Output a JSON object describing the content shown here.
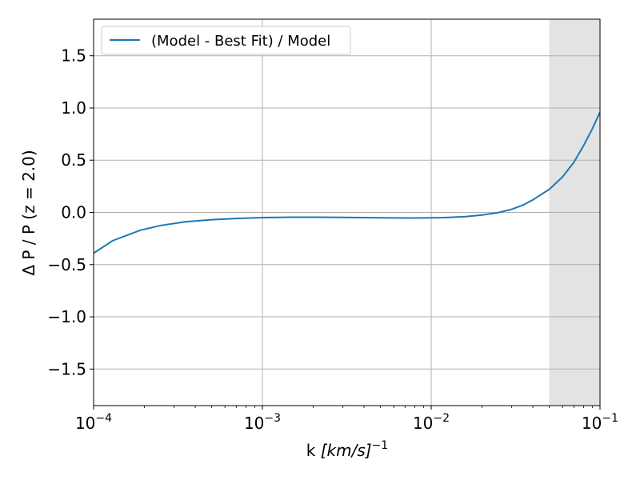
{
  "chart_data": {
    "type": "line",
    "title": "",
    "xlabel_main": "k ",
    "xlabel_unit": "[km/s]",
    "xlabel_exp": "−1",
    "ylabel": "Δ P / P   (z = 2.0)",
    "xscale": "log",
    "xlim": [
      0.0001,
      0.1
    ],
    "ylim": [
      -1.85,
      1.85
    ],
    "grid": true,
    "legend_placement": "top-left",
    "x_ticks": [
      {
        "value": 0.0001,
        "base": "10",
        "exp": "−4"
      },
      {
        "value": 0.001,
        "base": "10",
        "exp": "−3"
      },
      {
        "value": 0.01,
        "base": "10",
        "exp": "−2"
      },
      {
        "value": 0.1,
        "base": "10",
        "exp": "−1"
      }
    ],
    "y_ticks": [
      {
        "value": -1.5,
        "label": "−1.5"
      },
      {
        "value": -1.0,
        "label": "−1.0"
      },
      {
        "value": -0.5,
        "label": "−0.5"
      },
      {
        "value": 0.0,
        "label": "0.0"
      },
      {
        "value": 0.5,
        "label": "0.5"
      },
      {
        "value": 1.0,
        "label": "1.0"
      },
      {
        "value": 1.5,
        "label": "1.5"
      }
    ],
    "shaded_region": {
      "x_start": 0.05,
      "x_end": 0.1,
      "color": "#e3e3e3"
    },
    "series": [
      {
        "name": "(Model - Best Fit) / Model",
        "color": "#1f77b4",
        "points": [
          [
            0.0001,
            -0.39
          ],
          [
            0.00013,
            -0.27
          ],
          [
            0.00019,
            -0.17
          ],
          [
            0.00025,
            -0.125
          ],
          [
            0.00035,
            -0.09
          ],
          [
            0.0005,
            -0.07
          ],
          [
            0.0007,
            -0.058
          ],
          [
            0.001,
            -0.05
          ],
          [
            0.0015,
            -0.046
          ],
          [
            0.002,
            -0.046
          ],
          [
            0.003,
            -0.048
          ],
          [
            0.005,
            -0.052
          ],
          [
            0.008,
            -0.054
          ],
          [
            0.012,
            -0.05
          ],
          [
            0.016,
            -0.04
          ],
          [
            0.02,
            -0.025
          ],
          [
            0.025,
            -0.002
          ],
          [
            0.03,
            0.03
          ],
          [
            0.035,
            0.07
          ],
          [
            0.04,
            0.12
          ],
          [
            0.05,
            0.22
          ],
          [
            0.06,
            0.34
          ],
          [
            0.07,
            0.48
          ],
          [
            0.08,
            0.64
          ],
          [
            0.09,
            0.8
          ],
          [
            0.1,
            0.96
          ]
        ]
      }
    ]
  }
}
